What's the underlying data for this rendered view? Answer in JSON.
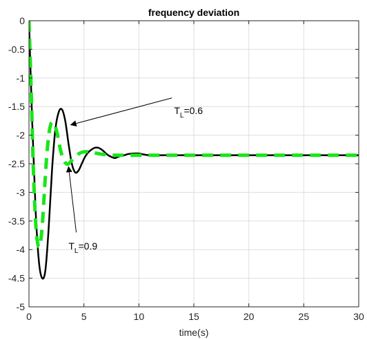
{
  "chart_data": {
    "type": "line",
    "title": "frequency deviation",
    "xlabel": "time(s)",
    "ylabel": "",
    "xlim": [
      0,
      30
    ],
    "ylim": [
      -5,
      0
    ],
    "xticks": [
      0,
      5,
      10,
      15,
      20,
      25,
      30
    ],
    "yticks": [
      0,
      -0.5,
      -1,
      -1.5,
      -2,
      -2.5,
      -3,
      -3.5,
      -4,
      -4.5,
      -5
    ],
    "xtick_labels": [
      "0",
      "5",
      "10",
      "15",
      "20",
      "25",
      "30"
    ],
    "ytick_labels": [
      "0",
      "-0.5",
      "-1",
      "-1.5",
      "-2",
      "-2.5",
      "-3",
      "-3.5",
      "-4",
      "-4.5",
      "-5"
    ],
    "grid": true,
    "series": [
      {
        "name": "",
        "color": "#000000",
        "style": "solid",
        "x": [
          0,
          0.3,
          0.6,
          0.9,
          1.2,
          1.5,
          1.8,
          2.1,
          2.4,
          2.7,
          3.0,
          3.3,
          3.6,
          3.9,
          4.2,
          4.5,
          4.8,
          5.1,
          5.4,
          5.7,
          6.0,
          6.3,
          6.6,
          6.9,
          7.2,
          7.5,
          7.8,
          8.1,
          8.4,
          8.7,
          9.0,
          9.5,
          10,
          10.5,
          11,
          12,
          13,
          14,
          16,
          18,
          20,
          22,
          24,
          26,
          28,
          30
        ],
        "y": [
          0,
          -1.8,
          -3.3,
          -4.2,
          -4.5,
          -4.35,
          -3.6,
          -2.6,
          -1.9,
          -1.6,
          -1.55,
          -1.75,
          -2.15,
          -2.5,
          -2.65,
          -2.62,
          -2.5,
          -2.38,
          -2.3,
          -2.25,
          -2.22,
          -2.22,
          -2.25,
          -2.3,
          -2.35,
          -2.38,
          -2.4,
          -2.38,
          -2.36,
          -2.35,
          -2.33,
          -2.32,
          -2.32,
          -2.34,
          -2.35,
          -2.35,
          -2.35,
          -2.35,
          -2.35,
          -2.35,
          -2.35,
          -2.35,
          -2.35,
          -2.35,
          -2.35,
          -2.35
        ]
      },
      {
        "name": "",
        "color": "#19e619",
        "style": "dashed",
        "x": [
          0,
          0.2,
          0.4,
          0.6,
          0.8,
          1.0,
          1.2,
          1.4,
          1.6,
          1.8,
          2.0,
          2.2,
          2.4,
          2.6,
          2.8,
          3.0,
          3.2,
          3.4,
          3.6,
          3.8,
          4.0,
          4.2,
          4.5,
          4.8,
          5.1,
          5.4,
          5.7,
          6.0,
          6.5,
          7.0,
          7.5,
          8.0,
          9.0,
          10,
          12,
          14,
          16,
          18,
          20,
          22,
          24,
          26,
          28,
          30
        ],
        "y": [
          0,
          -1.2,
          -2.6,
          -3.5,
          -3.9,
          -3.92,
          -3.6,
          -3.0,
          -2.4,
          -2.0,
          -1.8,
          -1.78,
          -1.85,
          -2.0,
          -2.2,
          -2.35,
          -2.45,
          -2.5,
          -2.5,
          -2.46,
          -2.42,
          -2.38,
          -2.33,
          -2.3,
          -2.29,
          -2.29,
          -2.3,
          -2.31,
          -2.33,
          -2.34,
          -2.35,
          -2.35,
          -2.35,
          -2.35,
          -2.35,
          -2.35,
          -2.35,
          -2.35,
          -2.35,
          -2.35,
          -2.35,
          -2.35,
          -2.35,
          -2.35
        ]
      }
    ],
    "annotations": [
      {
        "main": "T",
        "sub": "L",
        "rest": "=0.6",
        "text_x": 13.2,
        "text_y": -1.63,
        "arrow_from": [
          13.0,
          -1.35
        ],
        "arrow_to": [
          3.8,
          -1.82
        ]
      },
      {
        "main": "T",
        "sub": "L",
        "rest": "=0.9",
        "text_x": 3.6,
        "text_y": -4.0,
        "arrow_from": [
          4.3,
          -3.7
        ],
        "arrow_to": [
          3.6,
          -2.55
        ]
      }
    ]
  }
}
